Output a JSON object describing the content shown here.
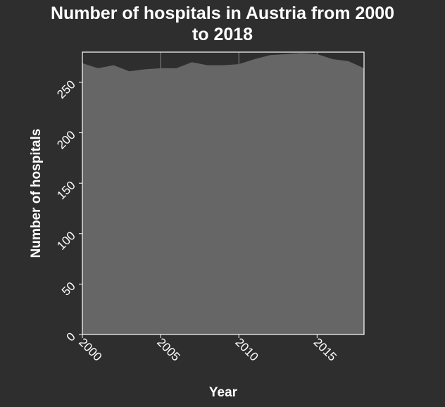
{
  "title_lines": [
    "Number of hospitals in Austria from 2000",
    "to 2018"
  ],
  "colors": {
    "background": "#2e2e2e",
    "area_fill": "#666666",
    "plot_border": "#ffffff",
    "gridline": "#888888",
    "text": "#ffffff"
  },
  "chart_data": {
    "type": "area",
    "title": "Number of hospitals in Austria from 2000 to 2018",
    "xlabel": "Year",
    "ylabel": "Number of hospitals",
    "x": [
      2000,
      2001,
      2002,
      2003,
      2004,
      2005,
      2006,
      2007,
      2008,
      2009,
      2010,
      2011,
      2012,
      2013,
      2014,
      2015,
      2016,
      2017,
      2018
    ],
    "series": [
      {
        "values": [
          269,
          264,
          267,
          261,
          263,
          264,
          264,
          270,
          267,
          267,
          268,
          273,
          277,
          278,
          279,
          278,
          273,
          271,
          264
        ]
      }
    ],
    "xlim": [
      2000,
      2018
    ],
    "ylim": [
      0,
      280
    ],
    "x_ticks": [
      2000,
      2005,
      2010,
      2015
    ],
    "y_ticks": [
      0,
      50,
      100,
      150,
      200,
      250
    ],
    "tick_labels_rotated": true,
    "grid": true,
    "legend": "none"
  }
}
